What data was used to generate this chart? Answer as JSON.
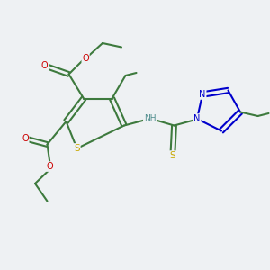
{
  "bg_color": "#eef1f3",
  "atom_colors": {
    "C": "#3d7a3d",
    "S": "#c8a800",
    "N": "#0000cc",
    "O": "#cc0000",
    "H": "#4a8a8a"
  },
  "bond_color": "#3d7a3d",
  "figsize": [
    3.0,
    3.0
  ],
  "dpi": 100
}
